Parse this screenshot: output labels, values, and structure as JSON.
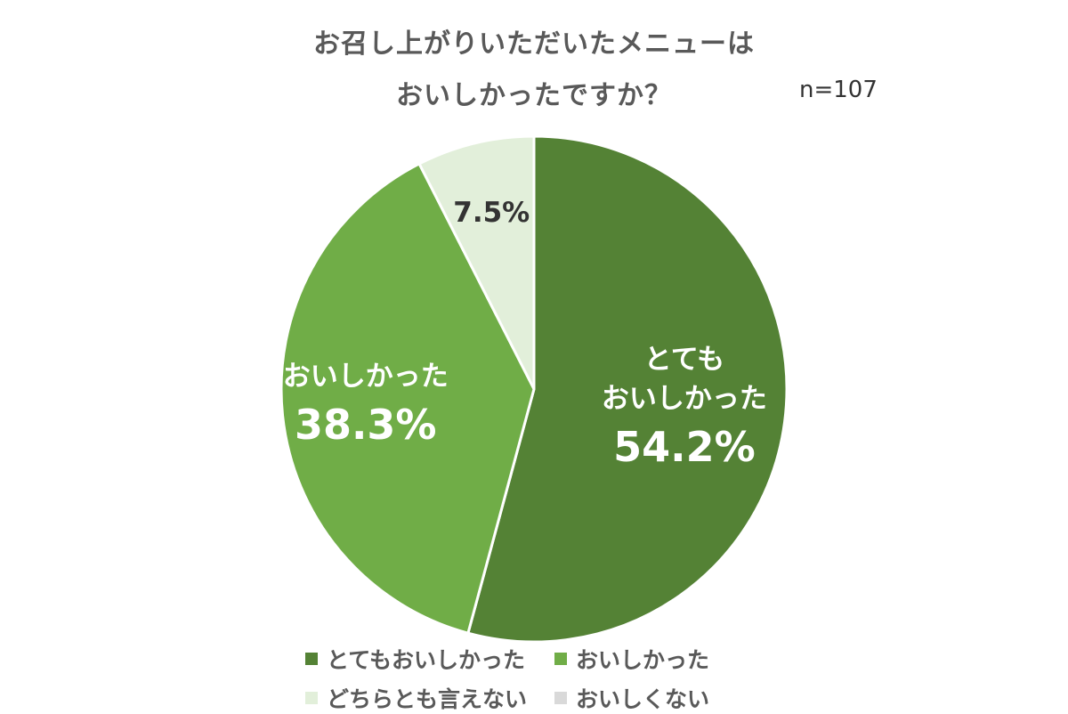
{
  "title_line1": "お召し上がりいただいたメニューは",
  "title_line2": "おいしかったですか？",
  "sample_size": "n=107",
  "chart_data": {
    "type": "pie",
    "title": "お召し上がりいただいたメニューは おいしかったですか？",
    "slices": [
      {
        "name": "とてもおいしかった",
        "value": 54.2,
        "label_lines": [
          "とても",
          "おいしかった"
        ],
        "value_text": "54.2%",
        "color": "#548235"
      },
      {
        "name": "おいしかった",
        "value": 38.3,
        "label_lines": [
          "おいしかった"
        ],
        "value_text": "38.3%",
        "color": "#70AD47"
      },
      {
        "name": "どちらとも言えない",
        "value": 7.5,
        "label_lines": [],
        "value_text": "7.5%",
        "color": "#E2EFDA"
      },
      {
        "name": "おいしくない",
        "value": 0,
        "label_lines": [],
        "value_text": "",
        "color": "#D9D9D9"
      }
    ],
    "start_angle": "12 o'clock, clockwise",
    "legend_position": "bottom"
  }
}
